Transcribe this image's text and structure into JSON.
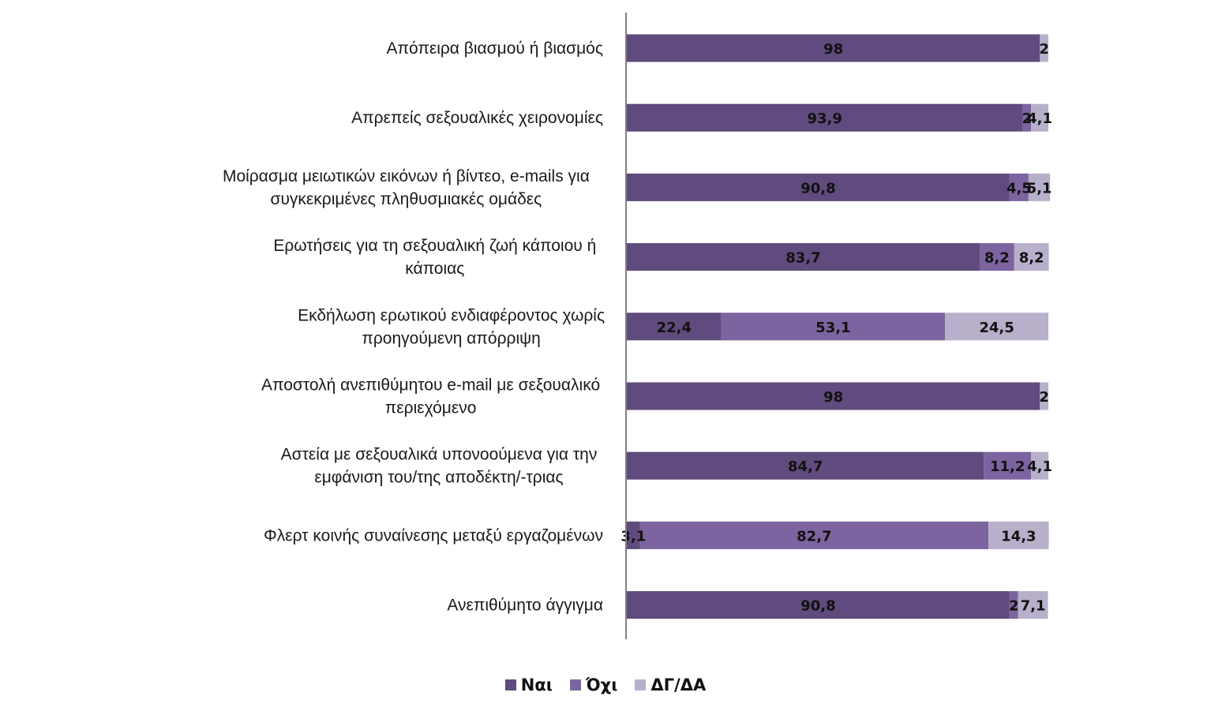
{
  "chart_data": {
    "type": "bar",
    "orientation": "horizontal",
    "stacked": true,
    "percent_stacked": true,
    "categories": [
      "Απόπειρα βιασμού ή βιασμός",
      "Απρεπείς σεξουαλικές χειρονομίες",
      "Μοίρασμα μειωτικών εικόνων ή βίντεο, e-mails για συγκεκριμένες πληθυσμιακές ομάδες",
      "Ερωτήσεις για τη σεξουαλική ζωή κάποιου ή κάποιας",
      "Εκδήλωση ερωτικού ενδιαφέροντος χωρίς προηγούμενη απόρριψη",
      "Αποστολή ανεπιθύμητου e-mail με σεξουαλικό περιεχόμενο",
      "Αστεία με σεξουαλικά υπονοούμενα για την εμφάνιση του/της αποδέκτη/-τριας",
      "Φλερτ κοινής συναίνεσης μεταξύ εργαζομένων",
      "Ανεπιθύμητο άγγιγμα"
    ],
    "category_lines": [
      [
        "Απόπειρα βιασμού ή βιασμός"
      ],
      [
        "Απρεπείς σεξουαλικές χειρονομίες"
      ],
      [
        "Μοίρασμα μειωτικών εικόνων ή βίντεο, e-mails για",
        "συγκεκριμένες πληθυσμιακές ομάδες"
      ],
      [
        "Ερωτήσεις για τη σεξουαλική ζωή κάποιου ή",
        "κάποιας"
      ],
      [
        "Εκδήλωση ερωτικού ενδιαφέροντος χωρίς",
        "προηγούμενη απόρριψη"
      ],
      [
        "Αποστολή ανεπιθύμητου e-mail με σεξουαλικό",
        "περιεχόμενο"
      ],
      [
        "Αστεία με σεξουαλικά υπονοούμενα για την",
        "εμφάνιση του/της αποδέκτη/-τριας"
      ],
      [
        "Φλερτ κοινής συναίνεσης μεταξύ εργαζομένων"
      ],
      [
        "Ανεπιθύμητο άγγιγμα"
      ]
    ],
    "series": [
      {
        "name": "Ναι",
        "color": "#5f4b7d",
        "values": [
          98,
          93.9,
          90.8,
          83.7,
          22.4,
          98,
          84.7,
          3.1,
          90.8
        ],
        "labels": [
          "98",
          "93,9",
          "90,8",
          "83,7",
          "22,4",
          "98",
          "84,7",
          "3,1",
          "90,8"
        ]
      },
      {
        "name": "Όχι",
        "color": "#7c64a0",
        "values": [
          0,
          2,
          4.5,
          8.2,
          53.1,
          0,
          11.2,
          82.7,
          2
        ],
        "labels": [
          "",
          "2",
          "4,5",
          "8,2",
          "53,1",
          "",
          "11,2",
          "82,7",
          "2"
        ]
      },
      {
        "name": "ΔΓ/ΔΑ",
        "color": "#b8afcb",
        "values": [
          2,
          4.1,
          5.1,
          8.2,
          24.5,
          2,
          4.1,
          14.3,
          7.1
        ],
        "labels": [
          "2",
          "4,1",
          "5,1",
          "8,2",
          "24,5",
          "2",
          "4,1",
          "14,3",
          "7,1"
        ]
      }
    ],
    "xlim": [
      0,
      100
    ],
    "grid": false,
    "legend_position": "bottom",
    "title": "",
    "xlabel": "",
    "ylabel": ""
  }
}
